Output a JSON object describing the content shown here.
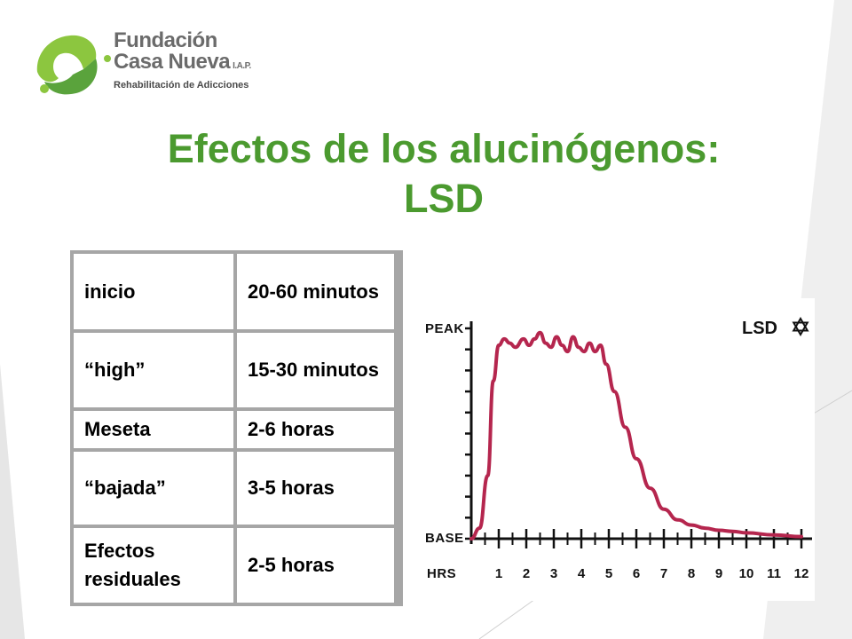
{
  "logo": {
    "line1": "Fundación",
    "line2": "Casa Nueva",
    "line2_suffix": "I.A.P.",
    "line3": "Rehabilitación de Adicciones",
    "colors": {
      "green": "#8cc63f",
      "dark_green": "#4b9a2f",
      "gray": "#6b6b6b"
    }
  },
  "title": {
    "line1": "Efectos de los alucinógenos:",
    "line2": "LSD",
    "color": "#4b9a2f"
  },
  "table": {
    "rows": [
      {
        "phase": "inicio",
        "duration": "20-60 minutos"
      },
      {
        "phase": "“high”",
        "duration": "15-30 minutos"
      },
      {
        "phase": "Meseta",
        "duration": "2-6 horas"
      },
      {
        "phase": "“bajada”",
        "duration": "3-5 horas"
      },
      {
        "phase": "Efectos residuales",
        "duration": "2-5 horas"
      }
    ]
  },
  "chart_data": {
    "type": "line",
    "title": "LSD",
    "title_icon": "star-of-david-icon",
    "ylabel_top": "Peak",
    "ylabel_bottom": "Base",
    "xlabel": "Hrs",
    "x_ticks": [
      "1",
      "2",
      "3",
      "4",
      "5",
      "6",
      "7",
      "8",
      "9",
      "10",
      "11",
      "12"
    ],
    "xlim": [
      0,
      12
    ],
    "ylim": [
      0,
      1
    ],
    "line_color": "#b5264e",
    "series": [
      {
        "x": [
          0.0,
          0.3,
          0.6,
          0.8,
          1.0,
          1.2,
          1.4,
          1.6,
          1.9,
          2.1,
          2.3,
          2.5,
          2.7,
          2.9,
          3.1,
          3.3,
          3.5,
          3.7,
          3.9,
          4.1,
          4.3,
          4.5,
          4.7,
          4.9,
          5.2,
          5.6,
          6.0,
          6.5,
          7.0,
          7.5,
          8.0,
          8.5,
          9.0,
          9.5,
          10.0,
          11.0,
          12.0
        ],
        "y": [
          0.0,
          0.05,
          0.3,
          0.75,
          0.92,
          0.95,
          0.93,
          0.91,
          0.95,
          0.92,
          0.95,
          0.98,
          0.93,
          0.91,
          0.96,
          0.92,
          0.89,
          0.96,
          0.91,
          0.89,
          0.93,
          0.89,
          0.92,
          0.83,
          0.7,
          0.53,
          0.38,
          0.24,
          0.14,
          0.09,
          0.065,
          0.05,
          0.04,
          0.035,
          0.028,
          0.018,
          0.01
        ]
      }
    ]
  }
}
